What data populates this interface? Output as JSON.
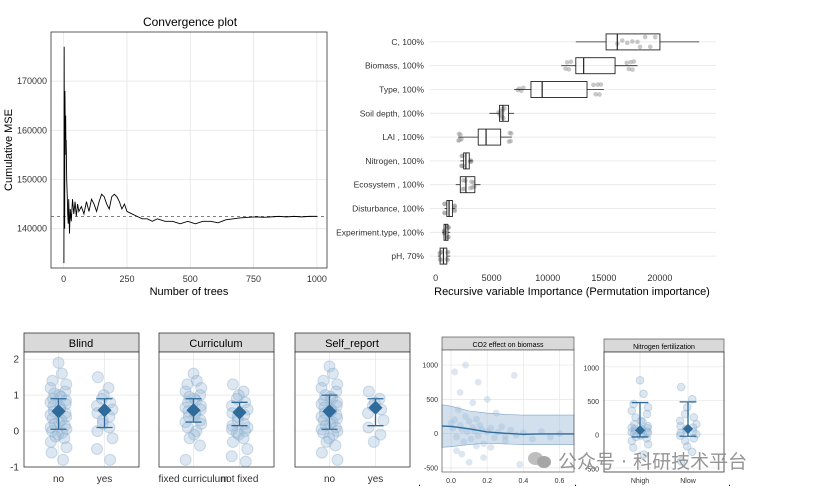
{
  "colors": {
    "accent": "#2f6b9a",
    "point": "#9bb9d6",
    "grid": "#e6e6e6",
    "strip": "#d9d9d9"
  },
  "watermark": {
    "text": "公众号 · 科研技术平台",
    "icon": "wechat-icon"
  },
  "chart_data": [
    {
      "id": "convergence",
      "type": "line",
      "title": "Convergence plot",
      "xlabel": "Number of trees",
      "ylabel": "Cumulative MSE",
      "xlim": [
        -50,
        1040
      ],
      "ylim": [
        132000,
        180000
      ],
      "xticks": [
        0,
        250,
        500,
        750,
        1000
      ],
      "yticks": [
        140000,
        150000,
        160000,
        170000
      ],
      "ytick_labels": [
        "140000",
        "150000",
        "160000",
        "170000"
      ],
      "reference_line": 142500,
      "series": [
        {
          "name": "Cumulative MSE",
          "x": [
            1,
            2,
            3,
            4,
            5,
            6,
            7,
            8,
            9,
            10,
            12,
            14,
            16,
            18,
            20,
            23,
            26,
            30,
            35,
            40,
            45,
            50,
            55,
            60,
            70,
            80,
            90,
            100,
            110,
            120,
            130,
            140,
            150,
            160,
            170,
            180,
            190,
            200,
            210,
            220,
            230,
            240,
            250,
            270,
            290,
            310,
            330,
            350,
            370,
            400,
            430,
            460,
            490,
            520,
            550,
            580,
            610,
            640,
            670,
            700,
            730,
            760,
            790,
            820,
            850,
            880,
            910,
            940,
            970,
            1000
          ],
          "y": [
            133000,
            177000,
            150000,
            140000,
            168000,
            162000,
            158000,
            163000,
            155000,
            158000,
            150000,
            147000,
            143000,
            141000,
            146000,
            139000,
            144000,
            141500,
            146000,
            143000,
            145500,
            142500,
            145000,
            143500,
            144500,
            143000,
            145500,
            143500,
            146000,
            145000,
            143500,
            145500,
            147000,
            146500,
            145000,
            144000,
            146500,
            147000,
            146500,
            145500,
            144000,
            145000,
            143500,
            143000,
            142500,
            142000,
            142000,
            141500,
            142000,
            141500,
            141500,
            141000,
            141500,
            141000,
            141500,
            141500,
            141200,
            141800,
            142000,
            142200,
            142300,
            142400,
            142300,
            142400,
            142500,
            142400,
            142500,
            142400,
            142500,
            142500
          ]
        }
      ]
    },
    {
      "id": "importance",
      "type": "box",
      "xlabel": "Recursive variable Importance (Permutation importance)",
      "ylabel": "",
      "xlim": [
        -500,
        25000
      ],
      "xticks": [
        0,
        5000,
        10000,
        15000,
        20000
      ],
      "categories": [
        "C, 100%",
        "Biomass, 100%",
        "Type, 100%",
        "Soil depth, 100%",
        "LAI , 100%",
        "Nitrogen, 100%",
        "Ecosystem , 100%",
        "Disturbance, 100%",
        "Experiment.type, 100%",
        "pH, 70%"
      ],
      "boxes": [
        {
          "min": 12500,
          "q1": 15200,
          "median": 16200,
          "q3": 20000,
          "max": 23500
        },
        {
          "min": 11200,
          "q1": 12500,
          "median": 13200,
          "q3": 16000,
          "max": 18000
        },
        {
          "min": 7000,
          "q1": 8500,
          "median": 9500,
          "q3": 13500,
          "max": 15000
        },
        {
          "min": 4800,
          "q1": 5700,
          "median": 6000,
          "q3": 6500,
          "max": 7000
        },
        {
          "min": 2000,
          "q1": 3800,
          "median": 4500,
          "q3": 5800,
          "max": 6800
        },
        {
          "min": 2200,
          "q1": 2500,
          "median": 2700,
          "q3": 3000,
          "max": 3300
        },
        {
          "min": 1800,
          "q1": 2200,
          "median": 2700,
          "q3": 3500,
          "max": 4000
        },
        {
          "min": 800,
          "q1": 1000,
          "median": 1200,
          "q3": 1500,
          "max": 1700
        },
        {
          "min": 600,
          "q1": 750,
          "median": 900,
          "q3": 1100,
          "max": 1300
        },
        {
          "min": 200,
          "q1": 400,
          "median": 700,
          "q3": 1000,
          "max": 1300
        }
      ]
    },
    {
      "id": "blind",
      "type": "scatter",
      "panel_title": "Blind",
      "categories": [
        "no",
        "yes"
      ],
      "ylim": [
        -1,
        2.2
      ],
      "yticks": [
        -1,
        0,
        1,
        2
      ],
      "ytick_labels": [
        "-1",
        "0",
        "1",
        "2"
      ],
      "means": [
        0.55,
        0.58
      ],
      "ci": [
        [
          0.05,
          0.9
        ],
        [
          0.1,
          0.9
        ]
      ],
      "points": [
        [
          1.9,
          1.6,
          1.4,
          1.3,
          1.2,
          1.1,
          1.05,
          1.0,
          0.95,
          0.9,
          0.85,
          0.8,
          0.75,
          0.7,
          0.65,
          0.6,
          0.55,
          0.5,
          0.45,
          0.4,
          0.35,
          0.3,
          0.25,
          0.2,
          0.15,
          0.1,
          0.05,
          0.0,
          -0.05,
          -0.1,
          -0.15,
          -0.2,
          -0.3,
          -0.45,
          -0.6,
          -0.8
        ],
        [
          1.5,
          1.2,
          1.0,
          0.9,
          0.8,
          0.7,
          0.6,
          0.5,
          0.4,
          0.3,
          0.2,
          0.1,
          0.0,
          -0.2,
          -0.5,
          -0.8
        ]
      ]
    },
    {
      "id": "curriculum",
      "type": "scatter",
      "panel_title": "Curriculum",
      "categories": [
        "fixed curriculum",
        "not fixed"
      ],
      "ylim": [
        -1,
        2.2
      ],
      "yticks": [
        -1,
        0,
        1,
        2
      ],
      "means": [
        0.58,
        0.52
      ],
      "ci": [
        [
          0.25,
          0.9
        ],
        [
          0.15,
          0.8
        ]
      ],
      "points": [
        [
          1.6,
          1.4,
          1.3,
          1.2,
          1.1,
          1.0,
          0.95,
          0.9,
          0.85,
          0.8,
          0.7,
          0.65,
          0.6,
          0.55,
          0.5,
          0.45,
          0.4,
          0.3,
          0.25,
          0.2,
          0.1,
          0.0,
          -0.1,
          -0.2,
          -0.4,
          -0.8
        ],
        [
          1.3,
          1.1,
          1.0,
          0.9,
          0.8,
          0.7,
          0.6,
          0.5,
          0.45,
          0.4,
          0.3,
          0.2,
          0.15,
          0.1,
          0.05,
          0.0,
          -0.05,
          -0.1,
          -0.2,
          -0.3,
          -0.5,
          -0.7,
          -0.85
        ]
      ]
    },
    {
      "id": "self_report",
      "type": "scatter",
      "panel_title": "Self_report",
      "categories": [
        "no",
        "yes"
      ],
      "ylim": [
        -1,
        2.2
      ],
      "yticks": [
        -1,
        0,
        1,
        2
      ],
      "means": [
        0.55,
        0.65
      ],
      "ci": [
        [
          0.05,
          1.0
        ],
        [
          0.15,
          0.9
        ]
      ],
      "points": [
        [
          1.8,
          1.6,
          1.4,
          1.3,
          1.2,
          1.1,
          1.0,
          0.95,
          0.9,
          0.85,
          0.8,
          0.75,
          0.7,
          0.65,
          0.6,
          0.55,
          0.5,
          0.45,
          0.4,
          0.35,
          0.3,
          0.25,
          0.2,
          0.15,
          0.1,
          0.05,
          0.0,
          -0.05,
          -0.1,
          -0.2,
          -0.3,
          -0.4,
          -0.6,
          -0.8
        ],
        [
          1.1,
          0.9,
          0.8,
          0.7,
          0.6,
          0.5,
          0.3,
          0.1,
          -0.1,
          -0.3
        ]
      ]
    },
    {
      "id": "co2",
      "type": "scatter",
      "panel_title": "CO2 effect on biomass",
      "xlim": [
        -0.05,
        0.68
      ],
      "ylim": [
        -560,
        1220
      ],
      "xticks": [
        0.0,
        0.2,
        0.4,
        0.6
      ],
      "xtick_labels": [
        "0.0",
        "0.2",
        "0.4",
        "0.6"
      ],
      "yticks": [
        -500,
        0,
        500,
        1000
      ],
      "ytick_labels": [
        "-500",
        "0",
        "500",
        "1000"
      ],
      "points": {
        "x": [
          0.0,
          0.01,
          0.02,
          0.03,
          0.04,
          0.05,
          0.06,
          0.07,
          0.08,
          0.09,
          0.1,
          0.11,
          0.12,
          0.13,
          0.14,
          0.15,
          0.16,
          0.17,
          0.18,
          0.2,
          0.22,
          0.24,
          0.26,
          0.28,
          0.3,
          0.33,
          0.36,
          0.4,
          0.45,
          0.5,
          0.55,
          0.6,
          0.02,
          0.05,
          0.08,
          0.12,
          0.15,
          0.2,
          0.25,
          0.35,
          0.03,
          0.06,
          0.1,
          0.14,
          0.18,
          0.22,
          0.3,
          0.38
        ],
        "y": [
          150,
          80,
          200,
          -50,
          350,
          120,
          60,
          -120,
          250,
          30,
          180,
          -80,
          90,
          40,
          210,
          -30,
          120,
          60,
          -150,
          30,
          80,
          -60,
          20,
          100,
          -40,
          50,
          -20,
          10,
          -80,
          30,
          -50,
          0,
          900,
          600,
          1000,
          450,
          750,
          500,
          300,
          850,
          -250,
          -300,
          -420,
          -180,
          -350,
          -200,
          -100,
          -450
        ]
      },
      "fit": {
        "x": [
          -0.05,
          0.0,
          0.1,
          0.2,
          0.3,
          0.4,
          0.5,
          0.6,
          0.68
        ],
        "y": [
          110,
          105,
          70,
          25,
          5,
          -10,
          -5,
          -5,
          -5
        ]
      },
      "band": {
        "upper": [
          420,
          400,
          330,
          300,
          280,
          270,
          270,
          270,
          270
        ],
        "lower": [
          -200,
          -190,
          -160,
          -140,
          -150,
          -160,
          -160,
          -160,
          -160
        ]
      }
    },
    {
      "id": "nitrogen",
      "type": "scatter",
      "panel_title": "Nitrogen fertilization",
      "categories": [
        "Nhigh",
        "Nlow"
      ],
      "ylim": [
        -560,
        1220
      ],
      "yticks": [
        -500,
        0,
        500,
        1000
      ],
      "ytick_labels": [
        "-500",
        "0",
        "500",
        "1000"
      ],
      "means": [
        60,
        80
      ],
      "ci": [
        [
          -40,
          470
        ],
        [
          -30,
          480
        ]
      ],
      "points": [
        [
          800,
          600,
          450,
          400,
          350,
          300,
          250,
          200,
          180,
          150,
          120,
          100,
          90,
          80,
          70,
          60,
          50,
          40,
          30,
          20,
          10,
          0,
          -20,
          -40,
          -60,
          -100,
          -150,
          -200,
          -300
        ],
        [
          700,
          520,
          400,
          300,
          250,
          200,
          150,
          120,
          100,
          80,
          60,
          40,
          20,
          0,
          -20,
          -60,
          -100,
          -180,
          -260,
          -400
        ]
      ]
    }
  ]
}
